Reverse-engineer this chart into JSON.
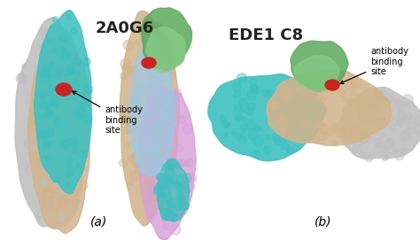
{
  "figsize": [
    4.74,
    2.71
  ],
  "dpi": 100,
  "background_color": "#ffffff",
  "panel_a": {
    "label": "(a)",
    "title": "2A0G6",
    "title_fontsize": 13,
    "title_color": "#222222",
    "annotation_text": "antibody\nbinding\nsite",
    "annotation_fontsize": 7
  },
  "panel_b": {
    "label": "(b)",
    "title": "EDE1 C8",
    "title_fontsize": 13,
    "title_color": "#222222",
    "annotation_text": "antibody\nbinding\nsite",
    "annotation_fontsize": 7
  },
  "colors": {
    "gray": "#c0c0c0",
    "teal": "#3ec0c0",
    "wheat": "#d2b48c",
    "pink": "#d8a0d8",
    "light_blue": "#a0c8e0",
    "green": "#5aaa5a",
    "red": "#cc2222",
    "light_teal": "#80d0d0"
  }
}
